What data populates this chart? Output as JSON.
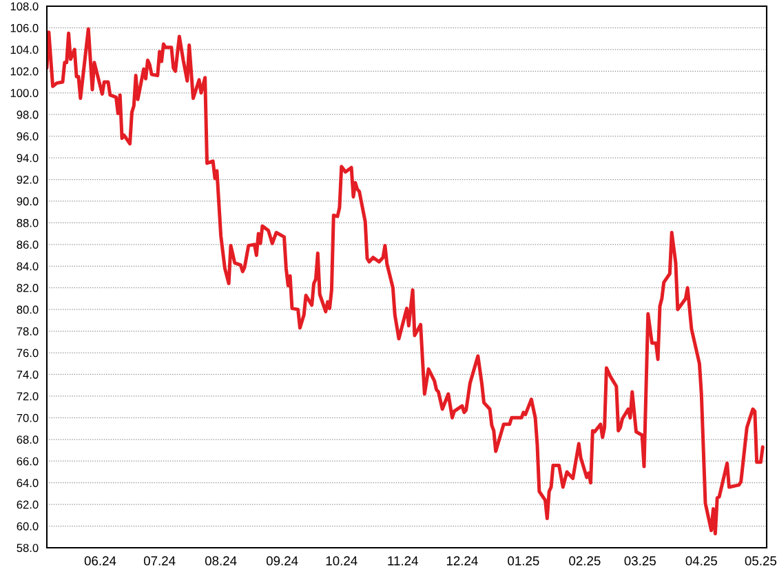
{
  "chart_data": {
    "type": "line",
    "x": [
      "2024-05-05",
      "2024-05-06",
      "2024-05-08",
      "2024-05-10",
      "2024-05-13",
      "2024-05-14",
      "2024-05-15",
      "2024-05-16",
      "2024-05-17",
      "2024-05-19",
      "2024-05-20",
      "2024-05-21",
      "2024-05-22",
      "2024-05-26",
      "2024-05-28",
      "2024-05-29",
      "2024-06-02",
      "2024-06-03",
      "2024-06-05",
      "2024-06-06",
      "2024-06-09",
      "2024-06-10",
      "2024-06-11",
      "2024-06-12",
      "2024-06-13",
      "2024-06-16",
      "2024-06-17",
      "2024-06-18",
      "2024-06-19",
      "2024-06-20",
      "2024-06-23",
      "2024-06-24",
      "2024-06-25",
      "2024-06-26",
      "2024-06-27",
      "2024-06-30",
      "2024-07-01",
      "2024-07-02",
      "2024-07-03",
      "2024-07-04",
      "2024-07-07",
      "2024-07-08",
      "2024-07-09",
      "2024-07-11",
      "2024-07-13",
      "2024-07-15",
      "2024-07-16",
      "2024-07-18",
      "2024-07-21",
      "2024-07-22",
      "2024-07-24",
      "2024-07-25",
      "2024-07-28",
      "2024-07-29",
      "2024-07-30",
      "2024-08-01",
      "2024-08-03",
      "2024-08-05",
      "2024-08-06",
      "2024-08-08",
      "2024-08-11",
      "2024-08-12",
      "2024-08-13",
      "2024-08-15",
      "2024-08-18",
      "2024-08-19",
      "2024-08-20",
      "2024-08-21",
      "2024-08-22",
      "2024-08-25",
      "2024-08-27",
      "2024-08-29",
      "2024-09-02",
      "2024-09-03",
      "2024-09-04",
      "2024-09-05",
      "2024-09-06",
      "2024-09-09",
      "2024-09-10",
      "2024-09-12",
      "2024-09-13",
      "2024-09-16",
      "2024-09-17",
      "2024-09-18",
      "2024-09-19",
      "2024-09-20",
      "2024-09-23",
      "2024-09-24",
      "2024-09-25",
      "2024-09-26",
      "2024-09-27",
      "2024-09-29",
      "2024-09-30",
      "2024-10-01",
      "2024-10-03",
      "2024-10-06",
      "2024-10-07",
      "2024-10-08",
      "2024-10-09",
      "2024-10-10",
      "2024-10-13",
      "2024-10-14",
      "2024-10-15",
      "2024-10-17",
      "2024-10-20",
      "2024-10-22",
      "2024-10-23",
      "2024-10-24",
      "2024-10-27",
      "2024-10-28",
      "2024-10-30",
      "2024-11-03",
      "2024-11-04",
      "2024-11-06",
      "2024-11-07",
      "2024-11-10",
      "2024-11-11",
      "2024-11-12",
      "2024-11-14",
      "2024-11-17",
      "2024-11-18",
      "2024-11-19",
      "2024-11-21",
      "2024-11-24",
      "2024-11-26",
      "2024-11-27",
      "2024-12-01",
      "2024-12-02",
      "2024-12-03",
      "2024-12-05",
      "2024-12-09",
      "2024-12-11",
      "2024-12-12",
      "2024-12-15",
      "2024-12-16",
      "2024-12-17",
      "2024-12-18",
      "2024-12-22",
      "2024-12-25",
      "2024-12-26",
      "2024-12-31",
      "2025-01-01",
      "2025-01-02",
      "2025-01-05",
      "2025-01-07",
      "2025-01-08",
      "2025-01-09",
      "2025-01-12",
      "2025-01-13",
      "2025-01-14",
      "2025-01-15",
      "2025-01-16",
      "2025-01-19",
      "2025-01-21",
      "2025-01-23",
      "2025-01-26",
      "2025-01-29",
      "2025-01-30",
      "2025-02-02",
      "2025-02-03",
      "2025-02-04",
      "2025-02-05",
      "2025-02-06",
      "2025-02-09",
      "2025-02-10",
      "2025-02-11",
      "2025-02-12",
      "2025-02-14",
      "2025-02-17",
      "2025-02-18",
      "2025-02-19",
      "2025-02-20",
      "2025-02-23",
      "2025-02-24",
      "2025-02-25",
      "2025-02-27",
      "2025-03-02",
      "2025-03-03",
      "2025-03-05",
      "2025-03-07",
      "2025-03-09",
      "2025-03-10",
      "2025-03-11",
      "2025-03-12",
      "2025-03-13",
      "2025-03-16",
      "2025-03-17",
      "2025-03-19",
      "2025-03-20",
      "2025-03-24",
      "2025-03-25",
      "2025-03-27",
      "2025-03-31",
      "2025-04-01",
      "2025-04-03",
      "2025-04-06",
      "2025-04-07",
      "2025-04-08",
      "2025-04-09",
      "2025-04-10",
      "2025-04-14",
      "2025-04-15",
      "2025-04-20",
      "2025-04-21",
      "2025-04-24",
      "2025-04-27",
      "2025-04-28",
      "2025-04-29",
      "2025-05-01",
      "2025-05-02"
    ],
    "series": [
      {
        "color": "#e31e24",
        "values": [
          102.3,
          105.6,
          100.6,
          100.9,
          101.0,
          102.8,
          102.8,
          105.5,
          103.1,
          104.0,
          101.5,
          101.5,
          99.5,
          105.9,
          100.3,
          102.8,
          99.9,
          101.0,
          101.0,
          99.8,
          99.6,
          98.1,
          99.8,
          95.8,
          96.1,
          95.3,
          98.2,
          98.8,
          101.6,
          99.4,
          102.2,
          101.3,
          103.0,
          102.6,
          101.7,
          101.6,
          103.8,
          102.9,
          104.5,
          104.2,
          104.2,
          102.3,
          102.0,
          105.2,
          103.0,
          101.1,
          104.4,
          99.5,
          101.2,
          100.0,
          101.4,
          93.5,
          93.7,
          92.1,
          92.8,
          86.8,
          83.8,
          82.4,
          85.9,
          84.3,
          84.1,
          83.5,
          83.9,
          85.9,
          86.0,
          85.0,
          87.0,
          86.1,
          87.7,
          87.3,
          86.1,
          87.1,
          86.7,
          83.8,
          82.2,
          83.1,
          80.1,
          80.0,
          78.3,
          79.5,
          81.3,
          80.4,
          82.4,
          82.8,
          85.2,
          81.4,
          79.8,
          80.7,
          80.1,
          81.8,
          88.7,
          88.6,
          89.4,
          93.2,
          92.7,
          93.1,
          90.4,
          91.7,
          91.1,
          90.9,
          88.1,
          84.7,
          84.4,
          84.8,
          84.4,
          84.8,
          85.9,
          84.2,
          82.0,
          79.5,
          77.3,
          80.1,
          78.5,
          81.8,
          77.6,
          78.6,
          75.3,
          72.2,
          74.5,
          73.4,
          72.6,
          72.4,
          70.8,
          72.2,
          70.0,
          70.6,
          71.1,
          70.5,
          70.7,
          73.2,
          75.7,
          73.1,
          71.4,
          70.8,
          69.3,
          68.8,
          66.9,
          69.4,
          69.4,
          70.0,
          70.0,
          70.5,
          70.3,
          71.7,
          70.0,
          67.5,
          63.2,
          62.4,
          60.7,
          63.2,
          63.6,
          65.6,
          65.6,
          63.6,
          65.0,
          64.4,
          67.6,
          66.3,
          64.5,
          64.9,
          64.0,
          68.8,
          68.7,
          69.4,
          68.2,
          69.1,
          74.6,
          73.8,
          72.9,
          68.8,
          69.1,
          69.9,
          70.8,
          70.0,
          72.4,
          68.7,
          68.4,
          65.5,
          79.6,
          76.9,
          76.9,
          75.4,
          80.3,
          81.0,
          82.5,
          83.3,
          87.1,
          84.3,
          80.0,
          81.0,
          82.0,
          78.2,
          75.0,
          72.2,
          62.1,
          59.6,
          61.6,
          59.3,
          62.6,
          62.7,
          65.8,
          63.6,
          63.8,
          64.1,
          69.1,
          70.8,
          70.6,
          65.9,
          65.9,
          67.3
        ]
      }
    ],
    "xlim": [
      "2024-05-05",
      "2025-05-04"
    ],
    "xticks": [
      {
        "value": "2024-06-01",
        "label": "06.24"
      },
      {
        "value": "2024-07-01",
        "label": "07.24"
      },
      {
        "value": "2024-08-01",
        "label": "08.24"
      },
      {
        "value": "2024-09-01",
        "label": "09.24"
      },
      {
        "value": "2024-10-01",
        "label": "10.24"
      },
      {
        "value": "2024-11-01",
        "label": "11.24"
      },
      {
        "value": "2024-12-01",
        "label": "12.24"
      },
      {
        "value": "2025-01-01",
        "label": "01.25"
      },
      {
        "value": "2025-02-01",
        "label": "02.25"
      },
      {
        "value": "2025-03-01",
        "label": "03.25"
      },
      {
        "value": "2025-04-01",
        "label": "04.25"
      },
      {
        "value": "2025-05-01",
        "label": "05.25"
      }
    ],
    "ylim": [
      58,
      108
    ],
    "yticks": [
      {
        "value": 58,
        "label": "58.0"
      },
      {
        "value": 60,
        "label": "60.0"
      },
      {
        "value": 62,
        "label": "62.0"
      },
      {
        "value": 64,
        "label": "64.0"
      },
      {
        "value": 66,
        "label": "66.0"
      },
      {
        "value": 68,
        "label": "68.0"
      },
      {
        "value": 70,
        "label": "70.0"
      },
      {
        "value": 72,
        "label": "72.0"
      },
      {
        "value": 74,
        "label": "74.0"
      },
      {
        "value": 76,
        "label": "76.0"
      },
      {
        "value": 78,
        "label": "78.0"
      },
      {
        "value": 80,
        "label": "80.0"
      },
      {
        "value": 82,
        "label": "82.0"
      },
      {
        "value": 84,
        "label": "84.0"
      },
      {
        "value": 86,
        "label": "86.0"
      },
      {
        "value": 88,
        "label": "88.0"
      },
      {
        "value": 90,
        "label": "90.0"
      },
      {
        "value": 92,
        "label": "92.0"
      },
      {
        "value": 94,
        "label": "94.0"
      },
      {
        "value": 96,
        "label": "96.0"
      },
      {
        "value": 98,
        "label": "98.0"
      },
      {
        "value": 100,
        "label": "100.0"
      },
      {
        "value": 102,
        "label": "102.0"
      },
      {
        "value": 104,
        "label": "104.0"
      },
      {
        "value": 106,
        "label": "106.0"
      },
      {
        "value": 108,
        "label": "108.0"
      }
    ],
    "grid": "y"
  }
}
